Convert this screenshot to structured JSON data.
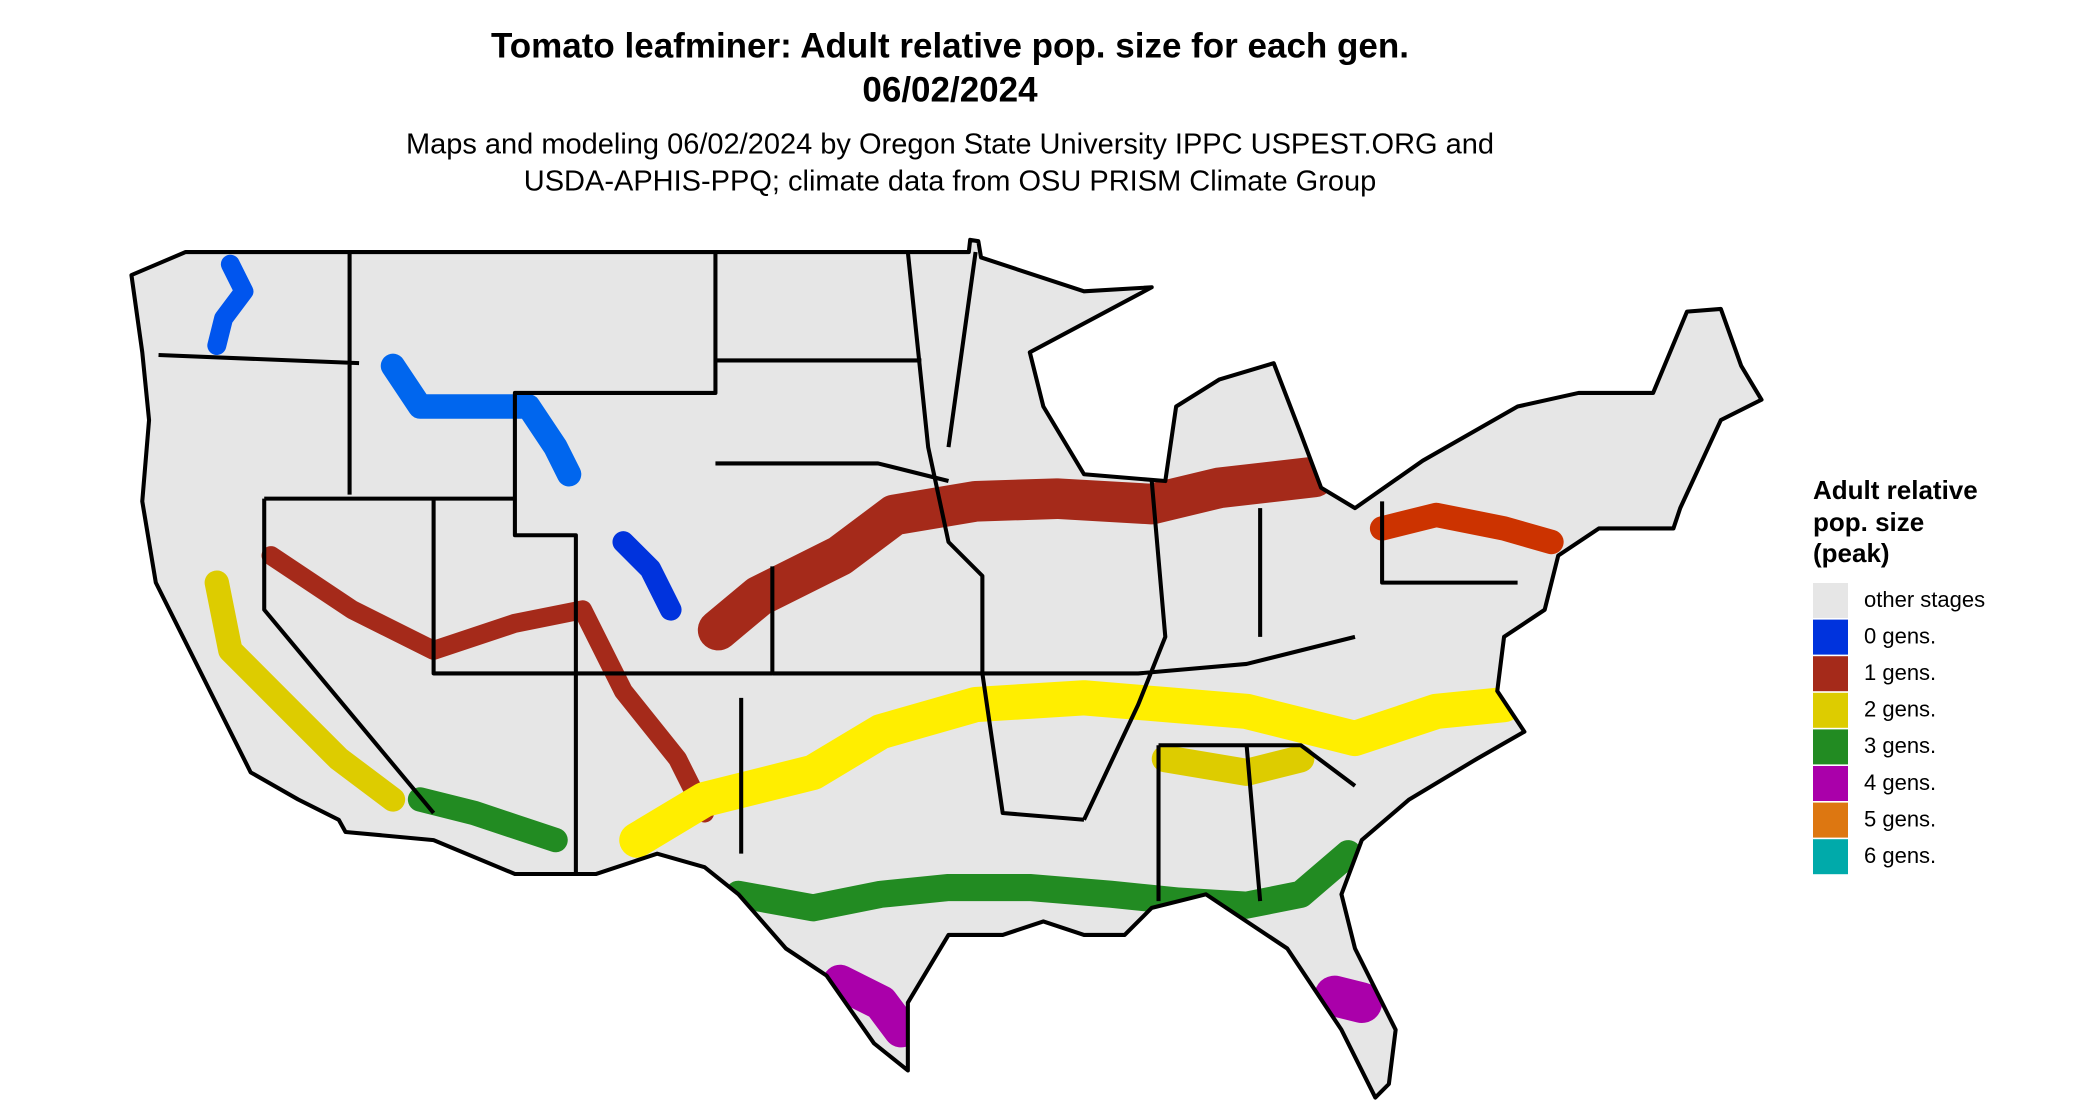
{
  "title": [
    "Tomato leafminer: Adult relative pop. size for each gen.",
    "06/02/2024"
  ],
  "subtitle": [
    "Maps and modeling 06/02/2024 by Oregon State University IPPC USPEST.ORG and",
    "USDA-APHIS-PPQ; climate data from OSU PRISM Climate Group"
  ],
  "legend": {
    "title": [
      "Adult relative",
      "pop. size",
      "(peak)"
    ],
    "items": [
      {
        "label": "other stages",
        "color": "#e6e6e6"
      },
      {
        "label": "0 gens.",
        "color": "#0033dd"
      },
      {
        "label": "1 gens.",
        "color": "#a52a1a"
      },
      {
        "label": "2 gens.",
        "color": "#ddcc00"
      },
      {
        "label": "3 gens.",
        "color": "#228b22"
      },
      {
        "label": "4 gens.",
        "color": "#aa00aa"
      },
      {
        "label": "5 gens.",
        "color": "#dd7711"
      },
      {
        "label": "6 gens.",
        "color": "#00aaaa"
      }
    ]
  }
}
